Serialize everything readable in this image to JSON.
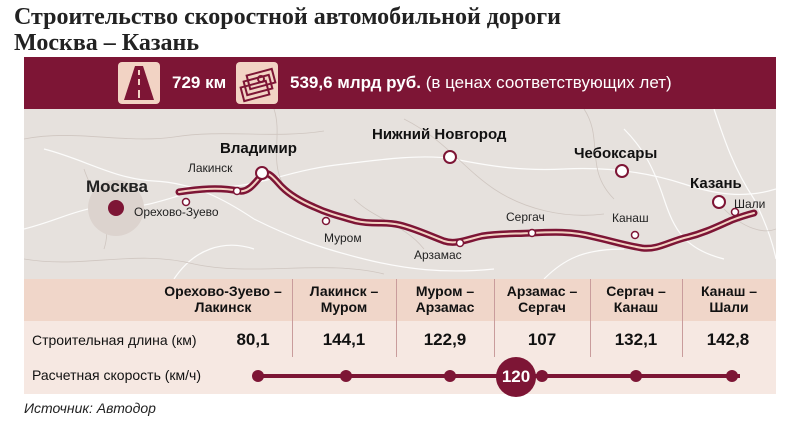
{
  "title": {
    "line1": "Строительство скоростной автомобильной дороги",
    "line2": "Москва – Казань"
  },
  "banner": {
    "road_icon": "road-icon",
    "length": "729 км",
    "money_icon": "money-stack-icon",
    "cost": "539,6 млрд руб.",
    "cost_note": "(в ценах соответствующих лет)"
  },
  "map": {
    "cities": {
      "moskva": "Москва",
      "orekhovo": "Орехово-Зуево",
      "lakinsk": "Лакинск",
      "vladimir": "Владимир",
      "murom": "Муром",
      "nizhny": "Нижний Новгород",
      "arzamas": "Арзамас",
      "sergach": "Сергач",
      "cheboksary": "Чебоксары",
      "kanash": "Канаш",
      "kazan": "Казань",
      "shali": "Шали"
    },
    "colors": {
      "road": "#7d1535",
      "background": "#e6e1dd",
      "rivers": "#ffffff"
    }
  },
  "table": {
    "sections": [
      {
        "name": "Орехово-Зуево – Лакинск",
        "line1": "Орехово-Зуево –",
        "line2": "Лакинск",
        "length": "80,1"
      },
      {
        "name": "Лакинск – Муром",
        "line1": "Лакинск –",
        "line2": "Муром",
        "length": "144,1"
      },
      {
        "name": "Муром – Арзамас",
        "line1": "Муром –",
        "line2": "Арзамас",
        "length": "122,9"
      },
      {
        "name": "Арзамас – Сергач",
        "line1": "Арзамас –",
        "line2": "Сергач",
        "length": "107"
      },
      {
        "name": "Сергач – Канаш",
        "line1": "Сергач –",
        "line2": "Канаш",
        "length": "132,1"
      },
      {
        "name": "Канаш – Шали",
        "line1": "Канаш –",
        "line2": "Шали",
        "length": "142,8"
      }
    ],
    "length_label": "Строительная длина (км)",
    "speed_label": "Расчетная скорость (км/ч)",
    "speed_value": "120"
  },
  "source": "Источник: Автодор",
  "colors": {
    "accent": "#7d1535",
    "header_bg": "#f0d6c9",
    "table_bg": "#f6e8e2",
    "badge_bg": "#f2d3c4"
  }
}
